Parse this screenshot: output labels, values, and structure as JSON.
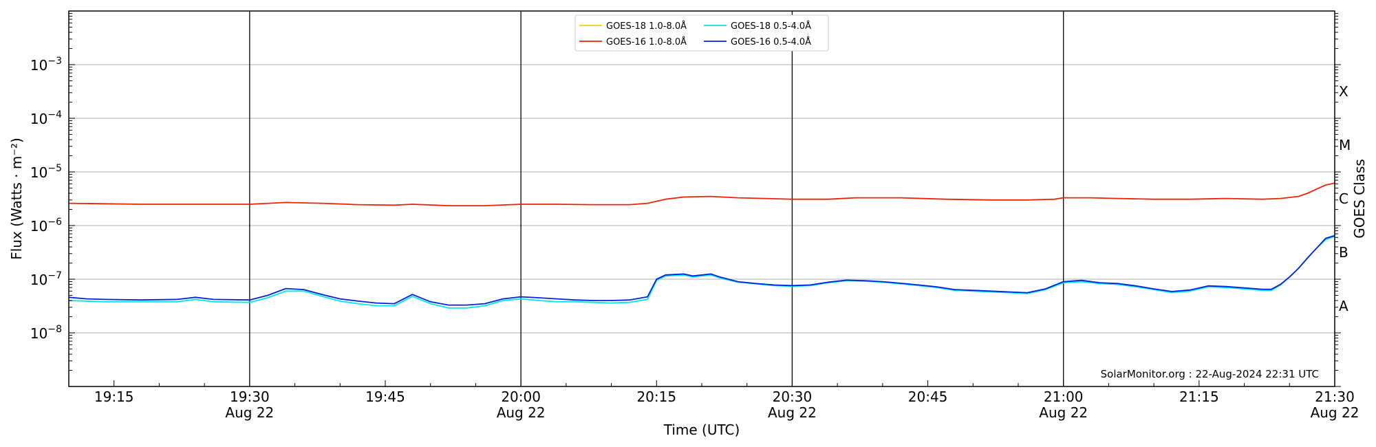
{
  "chart_data": {
    "type": "line",
    "xlabel": "Time (UTC)",
    "ylabel": "Flux (Watts · m⁻²)",
    "right_label": "GOES Class",
    "yscale": "log",
    "ylim": [
      1e-09,
      0.01
    ],
    "xlim": [
      "19:10",
      "21:30"
    ],
    "y_ticks": [
      {
        "value": 1e-08,
        "base": "10",
        "exp": "−8"
      },
      {
        "value": 1e-07,
        "base": "10",
        "exp": "−7"
      },
      {
        "value": 1e-06,
        "base": "10",
        "exp": "−6"
      },
      {
        "value": 1e-05,
        "base": "10",
        "exp": "−5"
      },
      {
        "value": 0.0001,
        "base": "10",
        "exp": "−4"
      },
      {
        "value": 0.001,
        "base": "10",
        "exp": "−3"
      }
    ],
    "x_ticks": [
      {
        "time": "19:15",
        "label": "19:15",
        "date": ""
      },
      {
        "time": "19:30",
        "label": "19:30",
        "date": "Aug 22"
      },
      {
        "time": "19:45",
        "label": "19:45",
        "date": ""
      },
      {
        "time": "20:00",
        "label": "20:00",
        "date": "Aug 22"
      },
      {
        "time": "20:15",
        "label": "20:15",
        "date": ""
      },
      {
        "time": "20:30",
        "label": "20:30",
        "date": "Aug 22"
      },
      {
        "time": "20:45",
        "label": "20:45",
        "date": ""
      },
      {
        "time": "21:00",
        "label": "21:00",
        "date": "Aug 22"
      },
      {
        "time": "21:15",
        "label": "21:15",
        "date": ""
      },
      {
        "time": "21:30",
        "label": "21:30",
        "date": "Aug 22"
      }
    ],
    "vertical_lines": [
      "19:30",
      "20:00",
      "20:30",
      "21:00"
    ],
    "goes_classes": [
      {
        "label": "A",
        "value": 1e-08
      },
      {
        "label": "B",
        "value": 1e-07
      },
      {
        "label": "C",
        "value": 1e-06
      },
      {
        "label": "M",
        "value": 1e-05
      },
      {
        "label": "X",
        "value": 0.0001
      }
    ],
    "legend_position": "top-center",
    "grid": "horizontal",
    "series": [
      {
        "name": "GOES-18 1.0-8.0Å",
        "color": "#f5d000",
        "points": []
      },
      {
        "name": "GOES-18 0.5-4.0Å",
        "color": "#00e5ee",
        "points": [
          [
            "19:10",
            4e-08
          ],
          [
            "19:14",
            3.8e-08
          ],
          [
            "19:18",
            3.8e-08
          ],
          [
            "19:22",
            3.8e-08
          ],
          [
            "19:24",
            4.2e-08
          ],
          [
            "19:26",
            3.8e-08
          ],
          [
            "19:30",
            3.7e-08
          ],
          [
            "19:32",
            4.5e-08
          ],
          [
            "19:34",
            6e-08
          ],
          [
            "19:36",
            6e-08
          ],
          [
            "19:38",
            4.8e-08
          ],
          [
            "19:40",
            3.9e-08
          ],
          [
            "19:42",
            3.5e-08
          ],
          [
            "19:44",
            3.2e-08
          ],
          [
            "19:46",
            3.2e-08
          ],
          [
            "19:48",
            4.8e-08
          ],
          [
            "19:50",
            3.5e-08
          ],
          [
            "19:52",
            2.9e-08
          ],
          [
            "19:54",
            2.9e-08
          ],
          [
            "19:56",
            3.2e-08
          ],
          [
            "19:58",
            4e-08
          ],
          [
            "20:00",
            4.3e-08
          ],
          [
            "20:02",
            4e-08
          ],
          [
            "20:04",
            3.8e-08
          ],
          [
            "20:06",
            3.8e-08
          ],
          [
            "20:08",
            3.7e-08
          ],
          [
            "20:10",
            3.6e-08
          ],
          [
            "20:12",
            3.7e-08
          ],
          [
            "20:14",
            4.2e-08
          ],
          [
            "20:15",
            9.5e-08
          ],
          [
            "20:16",
            1.15e-07
          ],
          [
            "20:18",
            1.2e-07
          ],
          [
            "20:19",
            1.1e-07
          ],
          [
            "20:21",
            1.2e-07
          ],
          [
            "20:22",
            1.05e-07
          ],
          [
            "20:24",
            8.8e-08
          ],
          [
            "20:26",
            8.2e-08
          ],
          [
            "20:28",
            7.6e-08
          ],
          [
            "20:30",
            7.4e-08
          ],
          [
            "20:32",
            7.6e-08
          ],
          [
            "20:34",
            8.6e-08
          ],
          [
            "20:36",
            9.4e-08
          ],
          [
            "20:38",
            9.2e-08
          ],
          [
            "20:40",
            8.8e-08
          ],
          [
            "20:42",
            8.2e-08
          ],
          [
            "20:44",
            7.6e-08
          ],
          [
            "20:46",
            7e-08
          ],
          [
            "20:48",
            6.2e-08
          ],
          [
            "20:50",
            6e-08
          ],
          [
            "20:52",
            5.8e-08
          ],
          [
            "20:54",
            5.6e-08
          ],
          [
            "20:56",
            5.4e-08
          ],
          [
            "20:58",
            6.4e-08
          ],
          [
            "21:00",
            8.6e-08
          ],
          [
            "21:02",
            9e-08
          ],
          [
            "21:04",
            8.3e-08
          ],
          [
            "21:06",
            8e-08
          ],
          [
            "21:08",
            7.2e-08
          ],
          [
            "21:10",
            6.4e-08
          ],
          [
            "21:12",
            5.6e-08
          ],
          [
            "21:14",
            6e-08
          ],
          [
            "21:16",
            7.2e-08
          ],
          [
            "21:18",
            7e-08
          ],
          [
            "21:20",
            6.6e-08
          ],
          [
            "21:22",
            6.2e-08
          ],
          [
            "21:23",
            6.2e-08
          ],
          [
            "21:24",
            7.8e-08
          ],
          [
            "21:25",
            1.1e-07
          ],
          [
            "21:26",
            1.6e-07
          ],
          [
            "21:27",
            2.5e-07
          ],
          [
            "21:28",
            3.8e-07
          ],
          [
            "21:29",
            5.5e-07
          ],
          [
            "21:30",
            6.3e-07
          ]
        ]
      },
      {
        "name": "GOES-16 1.0-8.0Å",
        "color": "#ee2200",
        "points": [
          [
            "19:10",
            2.6e-06
          ],
          [
            "19:14",
            2.55e-06
          ],
          [
            "19:18",
            2.5e-06
          ],
          [
            "19:22",
            2.5e-06
          ],
          [
            "19:26",
            2.5e-06
          ],
          [
            "19:30",
            2.5e-06
          ],
          [
            "19:34",
            2.7e-06
          ],
          [
            "19:38",
            2.6e-06
          ],
          [
            "19:42",
            2.45e-06
          ],
          [
            "19:46",
            2.4e-06
          ],
          [
            "19:48",
            2.5e-06
          ],
          [
            "19:52",
            2.35e-06
          ],
          [
            "19:56",
            2.35e-06
          ],
          [
            "20:00",
            2.5e-06
          ],
          [
            "20:04",
            2.5e-06
          ],
          [
            "20:08",
            2.45e-06
          ],
          [
            "20:12",
            2.45e-06
          ],
          [
            "20:14",
            2.6e-06
          ],
          [
            "20:16",
            3.1e-06
          ],
          [
            "20:18",
            3.4e-06
          ],
          [
            "20:21",
            3.5e-06
          ],
          [
            "20:24",
            3.3e-06
          ],
          [
            "20:27",
            3.2e-06
          ],
          [
            "20:30",
            3.1e-06
          ],
          [
            "20:34",
            3.1e-06
          ],
          [
            "20:37",
            3.3e-06
          ],
          [
            "20:42",
            3.3e-06
          ],
          [
            "20:47",
            3.1e-06
          ],
          [
            "20:52",
            3e-06
          ],
          [
            "20:56",
            3e-06
          ],
          [
            "20:59",
            3.1e-06
          ],
          [
            "21:00",
            3.3e-06
          ],
          [
            "21:03",
            3.3e-06
          ],
          [
            "21:06",
            3.2e-06
          ],
          [
            "21:10",
            3.1e-06
          ],
          [
            "21:14",
            3.1e-06
          ],
          [
            "21:18",
            3.2e-06
          ],
          [
            "21:22",
            3.1e-06
          ],
          [
            "21:24",
            3.2e-06
          ],
          [
            "21:26",
            3.5e-06
          ],
          [
            "21:27",
            4e-06
          ],
          [
            "21:28",
            4.8e-06
          ],
          [
            "21:29",
            5.7e-06
          ],
          [
            "21:30",
            6.2e-06
          ]
        ]
      },
      {
        "name": "GOES-16 0.5-4.0Å",
        "color": "#0022dd",
        "points": [
          [
            "19:10",
            4.6e-08
          ],
          [
            "19:12",
            4.3e-08
          ],
          [
            "19:14",
            4.2e-08
          ],
          [
            "19:18",
            4.1e-08
          ],
          [
            "19:22",
            4.2e-08
          ],
          [
            "19:24",
            4.6e-08
          ],
          [
            "19:26",
            4.2e-08
          ],
          [
            "19:30",
            4.1e-08
          ],
          [
            "19:32",
            5e-08
          ],
          [
            "19:34",
            6.7e-08
          ],
          [
            "19:36",
            6.4e-08
          ],
          [
            "19:38",
            5.2e-08
          ],
          [
            "19:40",
            4.3e-08
          ],
          [
            "19:42",
            3.9e-08
          ],
          [
            "19:44",
            3.6e-08
          ],
          [
            "19:46",
            3.5e-08
          ],
          [
            "19:48",
            5.2e-08
          ],
          [
            "19:50",
            3.8e-08
          ],
          [
            "19:52",
            3.3e-08
          ],
          [
            "19:54",
            3.3e-08
          ],
          [
            "19:56",
            3.5e-08
          ],
          [
            "19:58",
            4.3e-08
          ],
          [
            "20:00",
            4.7e-08
          ],
          [
            "20:02",
            4.5e-08
          ],
          [
            "20:04",
            4.3e-08
          ],
          [
            "20:06",
            4.1e-08
          ],
          [
            "20:08",
            4e-08
          ],
          [
            "20:10",
            4e-08
          ],
          [
            "20:12",
            4.1e-08
          ],
          [
            "20:14",
            4.7e-08
          ],
          [
            "20:15",
            1e-07
          ],
          [
            "20:16",
            1.2e-07
          ],
          [
            "20:18",
            1.25e-07
          ],
          [
            "20:19",
            1.15e-07
          ],
          [
            "20:21",
            1.25e-07
          ],
          [
            "20:22",
            1.1e-07
          ],
          [
            "20:24",
            9e-08
          ],
          [
            "20:26",
            8.3e-08
          ],
          [
            "20:28",
            7.8e-08
          ],
          [
            "20:30",
            7.6e-08
          ],
          [
            "20:32",
            7.8e-08
          ],
          [
            "20:34",
            8.8e-08
          ],
          [
            "20:36",
            9.6e-08
          ],
          [
            "20:38",
            9.4e-08
          ],
          [
            "20:40",
            9e-08
          ],
          [
            "20:42",
            8.4e-08
          ],
          [
            "20:44",
            7.8e-08
          ],
          [
            "20:46",
            7.2e-08
          ],
          [
            "20:48",
            6.4e-08
          ],
          [
            "20:50",
            6.2e-08
          ],
          [
            "20:52",
            6e-08
          ],
          [
            "20:54",
            5.8e-08
          ],
          [
            "20:56",
            5.6e-08
          ],
          [
            "20:58",
            6.6e-08
          ],
          [
            "21:00",
            9e-08
          ],
          [
            "21:02",
            9.5e-08
          ],
          [
            "21:04",
            8.6e-08
          ],
          [
            "21:06",
            8.3e-08
          ],
          [
            "21:08",
            7.5e-08
          ],
          [
            "21:10",
            6.6e-08
          ],
          [
            "21:12",
            5.9e-08
          ],
          [
            "21:14",
            6.3e-08
          ],
          [
            "21:16",
            7.5e-08
          ],
          [
            "21:18",
            7.3e-08
          ],
          [
            "21:20",
            6.9e-08
          ],
          [
            "21:22",
            6.5e-08
          ],
          [
            "21:23",
            6.5e-08
          ],
          [
            "21:24",
            8e-08
          ],
          [
            "21:25",
            1.1e-07
          ],
          [
            "21:26",
            1.6e-07
          ],
          [
            "21:27",
            2.5e-07
          ],
          [
            "21:28",
            3.8e-07
          ],
          [
            "21:29",
            5.8e-07
          ],
          [
            "21:30",
            6.5e-07
          ]
        ]
      }
    ]
  },
  "annotation": "SolarMonitor.org : 22-Aug-2024 22:31 UTC"
}
